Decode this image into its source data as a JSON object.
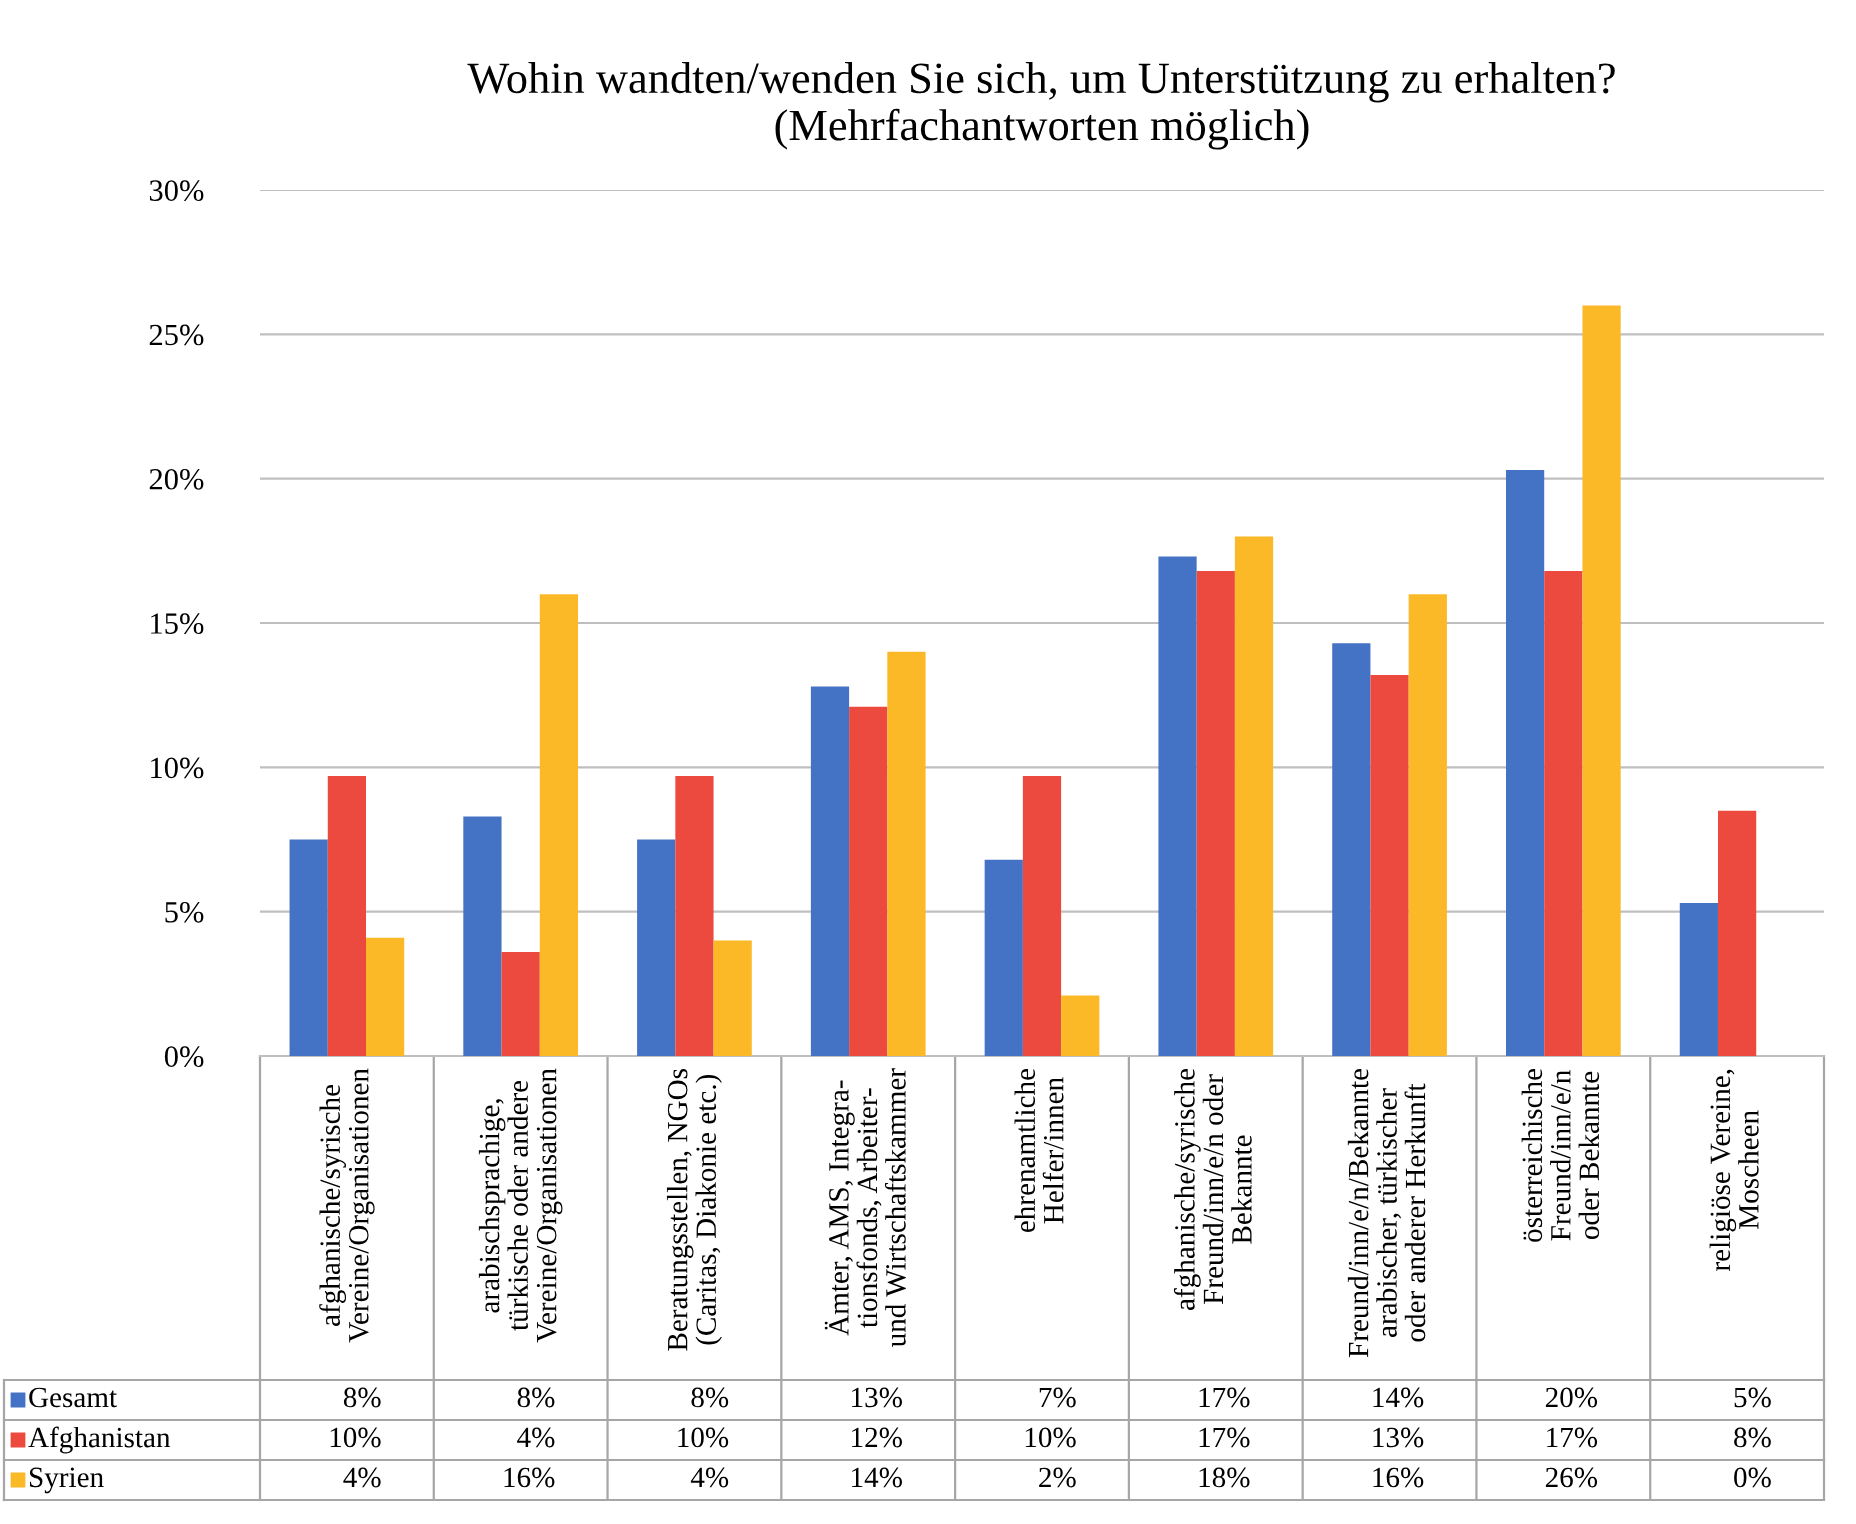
{
  "chart_data": {
    "type": "bar",
    "title": "Wohin wandten/wenden Sie sich, um Unterstützung zu erhalten?\n(Mehrfachantworten möglich)",
    "categories": [
      "afghanische/syrische\nVereine/Organisationen",
      "arabischsprachige,\ntürkische oder andere\nVereine/Organisationen",
      "Beratungsstellen, NGOs\n(Caritas, Diakonie etc.)",
      "Ämter, AMS, Integra-\ntionsfonds, Arbeiter-\nund Wirtschaftskammer",
      "ehrenamtliche\nHelfer/innen",
      "afghanische/syrische\nFreund/inn/e/n oder\nBekannte",
      "Freund/inn/e/n/Bekannte\narabischer, türkischer\noder anderer Herkunft",
      "österreichische\nFreund/inn/e/n\noder Bekannte",
      "religiöse Vereine,\nMoscheen"
    ],
    "series": [
      {
        "name": "Gesamt",
        "color": "#4472c4",
        "values": [
          7.5,
          8.3,
          7.5,
          12.8,
          6.8,
          17.3,
          14.3,
          20.3,
          5.3
        ],
        "value_labels": [
          "8%",
          "8%",
          "8%",
          "13%",
          "7%",
          "17%",
          "14%",
          "20%",
          "5%"
        ]
      },
      {
        "name": "Afghanistan",
        "color": "#ed4a3f",
        "values": [
          9.7,
          3.6,
          9.7,
          12.1,
          9.7,
          16.8,
          13.2,
          16.8,
          8.5
        ],
        "value_labels": [
          "10%",
          "4%",
          "10%",
          "12%",
          "10%",
          "17%",
          "13%",
          "17%",
          "8%"
        ]
      },
      {
        "name": "Syrien",
        "color": "#fbb827",
        "values": [
          4.1,
          16,
          4,
          14,
          2.1,
          18,
          16,
          26,
          0
        ],
        "value_labels": [
          "4%",
          "16%",
          "4%",
          "14%",
          "2%",
          "18%",
          "16%",
          "26%",
          "0%"
        ]
      }
    ],
    "ylim": [
      0,
      30
    ],
    "yticks": [
      {
        "value": 0,
        "label": "0%"
      },
      {
        "value": 5,
        "label": "5%"
      },
      {
        "value": 10,
        "label": "10%"
      },
      {
        "value": 15,
        "label": "15%"
      },
      {
        "value": 20,
        "label": "20%"
      },
      {
        "value": 25,
        "label": "25%"
      },
      {
        "value": 30,
        "label": "30%"
      }
    ],
    "grid": "y",
    "legend": "bottom"
  }
}
